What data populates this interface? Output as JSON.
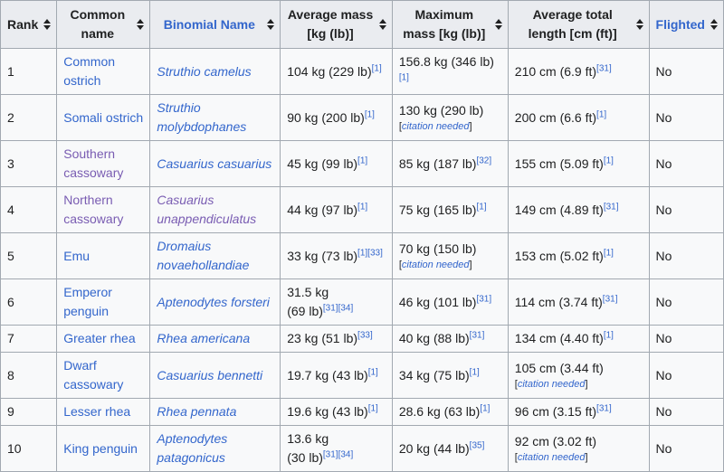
{
  "headers": {
    "rank": "Rank",
    "common_name": "Common name",
    "binomial_name": "Binomial Name",
    "avg_mass": "Average mass [kg (lb)]",
    "max_mass": "Maximum mass [kg (lb)]",
    "avg_length": "Average total length [cm (ft)]",
    "flighted": "Flighted"
  },
  "citation_needed": "citation needed",
  "rows": [
    {
      "rank": "1",
      "common": "Common ostrich",
      "binomial": "Struthio camelus",
      "avg_mass": "104 kg (229 lb)",
      "avg_mass_ref": "[1]",
      "max_mass": "156.8 kg (346 lb)",
      "max_mass_ref": "[1]",
      "length": "210 cm (6.9 ft)",
      "length_ref": "[31]",
      "flighted": "No"
    },
    {
      "rank": "2",
      "common": "Somali ostrich",
      "binomial": "Struthio molybdophanes",
      "avg_mass": "90 kg (200 lb)",
      "avg_mass_ref": "[1]",
      "max_mass": "130 kg (290 lb)",
      "length": "200 cm (6.6 ft)",
      "length_ref": "[1]",
      "flighted": "No"
    },
    {
      "rank": "3",
      "common": "Southern cassowary",
      "binomial": "Casuarius casuarius",
      "avg_mass": "45 kg (99 lb)",
      "avg_mass_ref": "[1]",
      "max_mass": "85 kg (187 lb)",
      "max_mass_ref": "[32]",
      "length": "155 cm (5.09 ft)",
      "length_ref": "[1]",
      "flighted": "No"
    },
    {
      "rank": "4",
      "common": "Northern cassowary",
      "binomial": "Casuarius unappendiculatus",
      "avg_mass": "44 kg (97 lb)",
      "avg_mass_ref": "[1]",
      "max_mass": "75 kg (165 lb)",
      "max_mass_ref": "[1]",
      "length": "149 cm (4.89 ft)",
      "length_ref": "[31]",
      "flighted": "No"
    },
    {
      "rank": "5",
      "common": "Emu",
      "binomial": "Dromaius novaehollandiae",
      "avg_mass": "33 kg (73 lb)",
      "avg_mass_ref": "[1][33]",
      "max_mass": "70 kg (150 lb)",
      "length": "153 cm (5.02 ft)",
      "length_ref": "[1]",
      "flighted": "No"
    },
    {
      "rank": "6",
      "common": "Emperor penguin",
      "binomial": "Aptenodytes forsteri",
      "avg_mass_kg": "31.5 kg",
      "avg_mass_lb": "(69 lb)",
      "avg_mass_ref": "[31][34]",
      "max_mass": "46 kg (101 lb)",
      "max_mass_ref": "[31]",
      "length": "114 cm (3.74 ft)",
      "length_ref": "[31]",
      "flighted": "No"
    },
    {
      "rank": "7",
      "common": "Greater rhea",
      "binomial": "Rhea americana",
      "avg_mass": "23 kg (51 lb)",
      "avg_mass_ref": "[33]",
      "max_mass": "40 kg (88 lb)",
      "max_mass_ref": "[31]",
      "length": "134 cm (4.40 ft)",
      "length_ref": "[1]",
      "flighted": "No"
    },
    {
      "rank": "8",
      "common": "Dwarf cassowary",
      "binomial": "Casuarius bennetti",
      "avg_mass": "19.7 kg (43 lb)",
      "avg_mass_ref": "[1]",
      "max_mass": "34 kg (75 lb)",
      "max_mass_ref": "[1]",
      "length": "105 cm (3.44 ft)",
      "flighted": "No"
    },
    {
      "rank": "9",
      "common": "Lesser rhea",
      "binomial": "Rhea pennata",
      "avg_mass": "19.6 kg (43 lb)",
      "avg_mass_ref": "[1]",
      "max_mass": "28.6 kg (63 lb)",
      "max_mass_ref": "[1]",
      "length": "96 cm (3.15 ft)",
      "length_ref": "[31]",
      "flighted": "No"
    },
    {
      "rank": "10",
      "common": "King penguin",
      "binomial": "Aptenodytes patagonicus",
      "avg_mass_kg": "13.6 kg",
      "avg_mass_lb": "(30 lb)",
      "avg_mass_ref": "[31][34]",
      "max_mass": "20 kg (44 lb)",
      "max_mass_ref": "[35]",
      "length": "92 cm (3.02 ft)",
      "flighted": "No"
    }
  ],
  "colors": {
    "link": "#3366cc",
    "visited_link": "#795cb2",
    "header_bg": "#eaecf0",
    "cell_bg": "#f8f9fa",
    "border": "#a2a9b1"
  }
}
